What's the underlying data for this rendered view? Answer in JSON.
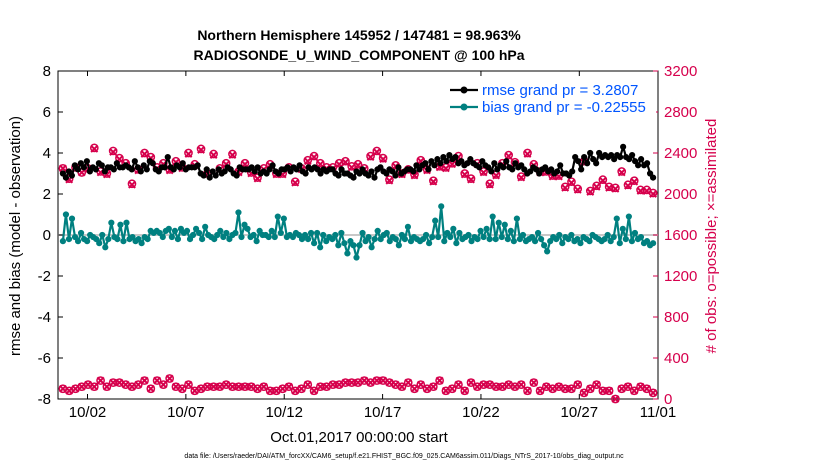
{
  "chart_data": {
    "type": "line",
    "title": "Northern Hemisphere 145952 / 147481 = 98.963%",
    "subtitle": "RADIOSONDE_U_WIND_COMPONENT @ 100 hPa",
    "xlabel": "Oct.01,2017 00:00:00 start",
    "ylabel": "rmse and bias (model - observation)",
    "y2label": "# of obs: o=possible; ×=assimilated",
    "footnote": "data file: /Users/raeder/DAI/ATM_forcXX/CAM6_setup/f.e21.FHIST_BGC.f09_025.CAM6assim.011/Diags_NTrS_2017-10/obs_diag_output.nc",
    "xlim": [
      0.5,
      31.0
    ],
    "ylim": [
      -8,
      8
    ],
    "y2lim": [
      0,
      3200
    ],
    "x_ticks": [
      2,
      7,
      12,
      17,
      22,
      27,
      32
    ],
    "x_tick_labels": [
      "10/02",
      "10/07",
      "10/12",
      "10/17",
      "10/22",
      "10/27",
      "11/01"
    ],
    "y_ticks": [
      -8,
      -6,
      -4,
      -2,
      0,
      2,
      4,
      6,
      8
    ],
    "y2_ticks": [
      0,
      400,
      800,
      1200,
      1600,
      2000,
      2400,
      2800,
      3200
    ],
    "grid": false,
    "zero_line": true,
    "legend_position": "top-right",
    "legend": [
      {
        "label": "rmse grand pr = 3.2807",
        "color": "#000000"
      },
      {
        "label": "bias grand pr = -0.22555",
        "color": "#008080"
      }
    ],
    "colors": {
      "rmse": "#000000",
      "bias": "#008080",
      "obs": "#d6004c",
      "legend_text": "#0055ff",
      "zero_line": "#c8c8c8"
    },
    "series": [
      {
        "key": "rmse",
        "axis": "left",
        "values": [
          3.0,
          2.8,
          3.1,
          2.9,
          3.4,
          3.2,
          3.5,
          3.3,
          3.6,
          3.1,
          3.3,
          3.2,
          3.5,
          3.4,
          3.1,
          3.3,
          3.3,
          3.2,
          3.5,
          3.3,
          3.3,
          3.4,
          3.3,
          3.2,
          3.6,
          3.3,
          3.1,
          3.4,
          3.2,
          3.6,
          3.5,
          3.2,
          3.1,
          3.3,
          3.3,
          3.8,
          3.3,
          3.2,
          3.4,
          3.3,
          3.5,
          3.2,
          3.3,
          3.3,
          3.3,
          3.4,
          3.0,
          2.9,
          3.2,
          2.8,
          3.1,
          2.9,
          3.2,
          3.0,
          3.1,
          3.3,
          3.2,
          3.0,
          2.9,
          3.3,
          3.2,
          3.2,
          3.2,
          3.3,
          3.1,
          3.3,
          3.0,
          3.1,
          3.0,
          3.2,
          3.4,
          3.1,
          3.0,
          3.2,
          3.2,
          3.3,
          3.1,
          3.3,
          3.2,
          3.4,
          3.1,
          3.0,
          3.3,
          3.2,
          3.3,
          3.2,
          3.0,
          3.2,
          3.1,
          3.2,
          3.2,
          3.0,
          2.9,
          3.2,
          3.0,
          3.0,
          2.9,
          2.8,
          3.1,
          3.0,
          3.2,
          3.0,
          2.9,
          3.1,
          2.8,
          3.2,
          3.3,
          3.1,
          3.0,
          3.2,
          3.1,
          2.9,
          3.3,
          3.0,
          3.1,
          3.2,
          3.2,
          3.1,
          3.4,
          3.2,
          3.4,
          3.5,
          3.2,
          3.6,
          3.4,
          3.7,
          3.5,
          3.8,
          3.6,
          3.9,
          3.7,
          3.8,
          3.5,
          3.6,
          3.4,
          3.5,
          3.7,
          3.5,
          3.4,
          3.3,
          3.6,
          3.4,
          3.3,
          3.1,
          3.5,
          3.2,
          3.4,
          3.3,
          3.6,
          3.3,
          3.2,
          3.5,
          3.3,
          3.4,
          3.2,
          3.0,
          3.1,
          3.3,
          3.2,
          3.0,
          3.2,
          3.3,
          3.1,
          3.2,
          3.0,
          3.1,
          3.4,
          3.0,
          3.0,
          2.9,
          3.1,
          3.8,
          3.6,
          3.2,
          3.8,
          3.5,
          4.0,
          3.7,
          3.5,
          4.0,
          3.8,
          3.9,
          3.8,
          3.9,
          3.7,
          3.9,
          3.8,
          4.3,
          3.8,
          3.7,
          3.9,
          3.6,
          3.4,
          3.7,
          3.4,
          3.5,
          3.0,
          2.8
        ]
      },
      {
        "key": "bias",
        "axis": "left",
        "values": [
          -0.3,
          1.0,
          -0.2,
          0.8,
          -0.1,
          -0.3,
          0.1,
          -0.2,
          -0.3,
          0.0,
          -0.1,
          -0.2,
          -0.4,
          0.0,
          -0.6,
          -0.2,
          0.6,
          -0.1,
          -0.2,
          0.5,
          -0.3,
          0.6,
          -0.2,
          -0.1,
          -0.3,
          -0.2,
          -0.4,
          -0.1,
          -0.2,
          0.2,
          0.1,
          0.2,
          0.1,
          -0.1,
          0.2,
          0.3,
          -0.1,
          0.2,
          -0.2,
          0.3,
          0.1,
          0.2,
          -0.2,
          0.0,
          0.3,
          0.1,
          -0.2,
          0.4,
          0.0,
          -0.1,
          -0.2,
          0.0,
          0.2,
          -0.1,
          0.1,
          -0.2,
          0.0,
          0.1,
          1.1,
          -0.1,
          0.5,
          0.3,
          -0.1,
          0.0,
          -0.3,
          0.2,
          0.0,
          0.0,
          -0.1,
          0.2,
          -0.1,
          0.9,
          0.1,
          0.8,
          -0.1,
          0.0,
          -0.1,
          0.1,
          0.0,
          -0.2,
          0.0,
          -0.2,
          0.1,
          -0.4,
          0.1,
          -0.6,
          0.0,
          -0.3,
          -0.1,
          -0.2,
          0.0,
          -0.5,
          0.1,
          -0.4,
          -0.9,
          -0.3,
          -0.5,
          -1.1,
          -0.5,
          0.1,
          -0.3,
          -0.1,
          -0.6,
          -0.2,
          0.2,
          -0.2,
          0.0,
          0.1,
          -0.3,
          -0.1,
          -0.2,
          -0.5,
          0.0,
          -0.2,
          0.4,
          -0.3,
          -0.1,
          -0.2,
          -0.3,
          -0.2,
          0.0,
          -0.4,
          -0.1,
          0.7,
          -0.1,
          1.4,
          -0.3,
          0.1,
          -0.1,
          0.3,
          -0.4,
          0.1,
          -0.2,
          -0.1,
          0.0,
          -0.3,
          -0.1,
          -0.2,
          0.2,
          -0.1,
          0.3,
          -0.2,
          0.9,
          -0.2,
          0.6,
          -0.1,
          0.5,
          -0.2,
          0.2,
          -0.3,
          0.8,
          -0.2,
          0.0,
          -0.3,
          -0.2,
          -0.1,
          -0.3,
          0.1,
          -0.2,
          -0.5,
          -0.8,
          -0.3,
          -0.1,
          -0.2,
          0.0,
          -0.4,
          -0.1,
          -0.2,
          0.0,
          -0.3,
          -0.2,
          -0.4,
          -0.1,
          -0.2,
          -0.3,
          0.0,
          -0.1,
          -0.2,
          -0.3,
          -0.2,
          0.0,
          -0.3,
          -0.1,
          0.8,
          -0.4,
          0.3,
          -0.2,
          0.9,
          -0.3,
          0.1,
          -0.2,
          -0.1,
          -0.4,
          -0.3,
          -0.5,
          -0.4
        ]
      },
      {
        "key": "possible",
        "axis": "right",
        "marker": "o",
        "values": [
          2250,
          2150,
          2260,
          2210,
          2250,
          2450,
          2220,
          2200,
          2420,
          2350,
          2300,
          2100,
          2240,
          2400,
          2360,
          2260,
          2300,
          2240,
          2320,
          2260,
          2400,
          2290,
          2440,
          2200,
          2390,
          2250,
          2300,
          2390,
          2220,
          2300,
          2210,
          2160,
          2250,
          2290,
          2200,
          2200,
          2260,
          2120,
          2250,
          2330,
          2370,
          2300,
          2260,
          2260,
          2300,
          2320,
          2270,
          2290,
          2250,
          2370,
          2420,
          2350,
          2140,
          2280,
          2200,
          2240,
          2190,
          2330,
          2240,
          2130,
          2270,
          2260,
          2300,
          2370,
          2200,
          2150,
          2300,
          2220,
          2100,
          2190,
          2300,
          2380,
          2310,
          2170,
          2400,
          2290,
          2220,
          2220,
          2180,
          2180,
          2070,
          2120,
          2050,
          2320,
          2030,
          2080,
          2140,
          2070,
          2060,
          2220,
          2090,
          2130,
          2040,
          2040,
          2010
        ]
      },
      {
        "key": "assimilated",
        "axis": "right",
        "marker": "x",
        "values": [
          2250,
          2140,
          2260,
          2210,
          2240,
          2440,
          2210,
          2190,
          2410,
          2340,
          2290,
          2090,
          2230,
          2390,
          2350,
          2250,
          2290,
          2230,
          2310,
          2250,
          2390,
          2280,
          2430,
          2190,
          2380,
          2240,
          2290,
          2380,
          2210,
          2290,
          2200,
          2150,
          2240,
          2280,
          2190,
          2190,
          2250,
          2110,
          2240,
          2320,
          2360,
          2290,
          2250,
          2250,
          2290,
          2310,
          2260,
          2280,
          2240,
          2360,
          2410,
          2340,
          2130,
          2270,
          2190,
          2230,
          2180,
          2320,
          2230,
          2120,
          2260,
          2250,
          2290,
          2360,
          2190,
          2140,
          2290,
          2210,
          2090,
          2180,
          2290,
          2370,
          2300,
          2160,
          2390,
          2280,
          2210,
          2210,
          2170,
          2170,
          2060,
          2110,
          2040,
          2310,
          2020,
          2070,
          2130,
          2060,
          2050,
          2210,
          2080,
          2120,
          2030,
          2030,
          2000
        ]
      },
      {
        "key": "possible_low",
        "axis": "left",
        "marker": "o",
        "values": [
          -7.5,
          -7.6,
          -7.5,
          -7.4,
          -7.3,
          -7.4,
          -7.1,
          -7.4,
          -7.2,
          -7.2,
          -7.3,
          -7.4,
          -7.3,
          -7.1,
          -7.5,
          -7.1,
          -7.3,
          -7.0,
          -7.4,
          -7.5,
          -7.3,
          -7.6,
          -7.5,
          -7.4,
          -7.4,
          -7.4,
          -7.3,
          -7.4,
          -7.4,
          -7.4,
          -7.4,
          -7.5,
          -7.4,
          -7.6,
          -7.6,
          -7.5,
          -7.4,
          -7.6,
          -7.5,
          -7.3,
          -7.6,
          -7.4,
          -7.4,
          -7.3,
          -7.3,
          -7.2,
          -7.2,
          -7.2,
          -7.1,
          -7.2,
          -7.1,
          -7.1,
          -7.2,
          -7.3,
          -7.4,
          -7.2,
          -7.5,
          -7.3,
          -7.5,
          -7.4,
          -7.1,
          -7.6,
          -7.5,
          -7.3,
          -7.6,
          -7.2,
          -7.4,
          -7.3,
          -7.3,
          -7.4,
          -7.4,
          -7.3,
          -7.4,
          -7.3,
          -7.6,
          -7.2,
          -7.6,
          -7.4,
          -7.5,
          -7.4,
          -7.5,
          -7.5,
          -7.3,
          -7.7,
          -7.5,
          -7.3,
          -7.6,
          -7.6,
          -8.0,
          -7.5,
          -7.4,
          -7.6,
          -7.4,
          -7.5,
          -7.7
        ]
      }
    ]
  }
}
